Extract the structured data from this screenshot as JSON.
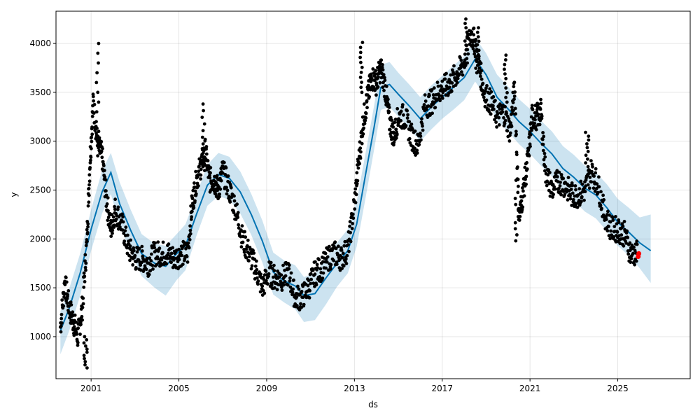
{
  "chart_data": {
    "type": "line",
    "title": "",
    "xlabel": "ds",
    "ylabel": "y",
    "xlim": [
      1999.4,
      2028.3
    ],
    "ylim": [
      570,
      4330
    ],
    "grid": true,
    "legend": "none",
    "x_ticks": [
      {
        "value": 2001,
        "label": "2001"
      },
      {
        "value": 2005,
        "label": "2005"
      },
      {
        "value": 2009,
        "label": "2009"
      },
      {
        "value": 2013,
        "label": "2013"
      },
      {
        "value": 2017,
        "label": "2017"
      },
      {
        "value": 2021,
        "label": "2021"
      },
      {
        "value": 2025,
        "label": "2025"
      }
    ],
    "y_ticks": [
      {
        "value": 1000,
        "label": "1000"
      },
      {
        "value": 1500,
        "label": "1500"
      },
      {
        "value": 2000,
        "label": "2000"
      },
      {
        "value": 2500,
        "label": "2500"
      },
      {
        "value": 3000,
        "label": "3000"
      },
      {
        "value": 3500,
        "label": "3500"
      },
      {
        "value": 4000,
        "label": "4000"
      }
    ],
    "colors": {
      "observed": "#000000",
      "forecast_line": "#0072B2",
      "uncertainty_band": "#0072B2",
      "latest_points": "#ff0000"
    },
    "forecast": {
      "x": [
        1999.6,
        2000.0,
        2000.5,
        2001.0,
        2001.5,
        2001.9,
        2002.3,
        2002.8,
        2003.3,
        2003.9,
        2004.4,
        2004.9,
        2005.3,
        2005.8,
        2006.3,
        2006.8,
        2007.3,
        2007.8,
        2008.3,
        2008.8,
        2009.3,
        2009.8,
        2010.3,
        2010.7,
        2011.2,
        2011.7,
        2012.2,
        2012.7,
        2013.1,
        2013.5,
        2013.9,
        2014.2,
        2014.6,
        2015.0,
        2015.5,
        2016.0,
        2016.5,
        2017.0,
        2017.5,
        2018.0,
        2018.5,
        2019.0,
        2019.5,
        2020.0,
        2020.5,
        2021.0,
        2021.5,
        2022.0,
        2022.5,
        2023.0,
        2023.5,
        2024.0,
        2024.5,
        2025.0,
        2025.5,
        2026.0,
        2026.5
      ],
      "yhat": [
        1060,
        1290,
        1650,
        2100,
        2480,
        2680,
        2360,
        2090,
        1850,
        1750,
        1720,
        1850,
        1930,
        2250,
        2550,
        2660,
        2620,
        2480,
        2250,
        1980,
        1660,
        1570,
        1520,
        1420,
        1440,
        1600,
        1750,
        1880,
        2150,
        2650,
        3150,
        3550,
        3580,
        3480,
        3360,
        3230,
        3350,
        3450,
        3550,
        3650,
        3840,
        3680,
        3450,
        3330,
        3200,
        3100,
        2980,
        2870,
        2720,
        2630,
        2520,
        2450,
        2320,
        2170,
        2070,
        1960,
        1880
      ],
      "upper": [
        1260,
        1490,
        1850,
        2300,
        2700,
        2880,
        2580,
        2300,
        2050,
        1950,
        1930,
        2050,
        2150,
        2450,
        2760,
        2880,
        2840,
        2690,
        2460,
        2190,
        1860,
        1780,
        1730,
        1610,
        1650,
        1800,
        1960,
        2100,
        2380,
        2870,
        3370,
        3780,
        3810,
        3700,
        3580,
        3450,
        3570,
        3670,
        3770,
        3870,
        4060,
        3900,
        3680,
        3560,
        3430,
        3330,
        3210,
        3100,
        2950,
        2860,
        2750,
        2680,
        2560,
        2410,
        2320,
        2220,
        2250
      ],
      "lower": [
        820,
        1060,
        1420,
        1880,
        2260,
        2460,
        2140,
        1870,
        1620,
        1500,
        1420,
        1580,
        1680,
        2030,
        2340,
        2440,
        2400,
        2260,
        2040,
        1760,
        1430,
        1350,
        1280,
        1150,
        1170,
        1330,
        1510,
        1650,
        1920,
        2410,
        2920,
        3320,
        3350,
        3250,
        3130,
        3000,
        3120,
        3230,
        3320,
        3420,
        3610,
        3450,
        3210,
        3100,
        2970,
        2870,
        2750,
        2640,
        2490,
        2390,
        2280,
        2210,
        2080,
        1930,
        1830,
        1700,
        1550
      ]
    },
    "observed_series": {
      "x": [
        1999.6,
        1999.8,
        2000.0,
        2000.2,
        2000.4,
        2000.6,
        2000.8,
        2000.95,
        2001.1,
        2001.3,
        2001.5,
        2001.7,
        2001.9,
        2002.1,
        2002.4,
        2002.7,
        2003.0,
        2003.3,
        2003.6,
        2003.9,
        2004.2,
        2004.5,
        2004.8,
        2005.1,
        2005.4,
        2005.6,
        2005.8,
        2006.0,
        2006.2,
        2006.4,
        2006.6,
        2006.8,
        2007.0,
        2007.3,
        2007.6,
        2007.9,
        2008.2,
        2008.5,
        2008.8,
        2009.1,
        2009.4,
        2009.7,
        2010.0,
        2010.3,
        2010.6,
        2010.9,
        2011.2,
        2011.5,
        2011.8,
        2012.1,
        2012.4,
        2012.7,
        2013.0,
        2013.2,
        2013.4,
        2013.6,
        2013.8,
        2014.0,
        2014.2,
        2014.4,
        2014.6,
        2014.8,
        2015.0,
        2015.3,
        2015.6,
        2015.9,
        2016.2,
        2016.5,
        2016.8,
        2017.1,
        2017.4,
        2017.7,
        2018.0,
        2018.3,
        2018.5,
        2018.7,
        2018.9,
        2019.2,
        2019.5,
        2019.8,
        2020.1,
        2020.3,
        2020.5,
        2020.7,
        2020.9,
        2021.1,
        2021.3,
        2021.5,
        2021.7,
        2022.0,
        2022.3,
        2022.6,
        2022.9,
        2023.2,
        2023.5,
        2023.8,
        2024.1,
        2024.4,
        2024.7,
        2025.0,
        2025.3,
        2025.6,
        2025.9
      ],
      "y": [
        1100,
        1550,
        1300,
        1150,
        1000,
        1300,
        1950,
        2800,
        3400,
        2950,
        2850,
        2400,
        2100,
        2300,
        2150,
        1900,
        1800,
        1800,
        1750,
        1850,
        1850,
        1850,
        1800,
        1850,
        1850,
        2350,
        2600,
        2750,
        2900,
        2600,
        2600,
        2500,
        2700,
        2500,
        2300,
        2000,
        1850,
        1700,
        1500,
        1650,
        1600,
        1600,
        1650,
        1400,
        1400,
        1500,
        1650,
        1700,
        1800,
        1850,
        1800,
        1900,
        2350,
        2800,
        3200,
        3450,
        3650,
        3600,
        3750,
        3550,
        3200,
        3050,
        3250,
        3250,
        3050,
        2950,
        3350,
        3400,
        3500,
        3550,
        3600,
        3700,
        3800,
        4100,
        4000,
        3750,
        3500,
        3400,
        3250,
        3300,
        3100,
        3550,
        2200,
        2500,
        2800,
        3250,
        3250,
        3300,
        2700,
        2500,
        2600,
        2550,
        2450,
        2450,
        2500,
        2700,
        2550,
        2250,
        2100,
        2100,
        2050,
        1850,
        1850
      ]
    },
    "latest_points": {
      "x": [
        2025.93,
        2025.96
      ],
      "y": [
        1820,
        1850
      ]
    }
  }
}
